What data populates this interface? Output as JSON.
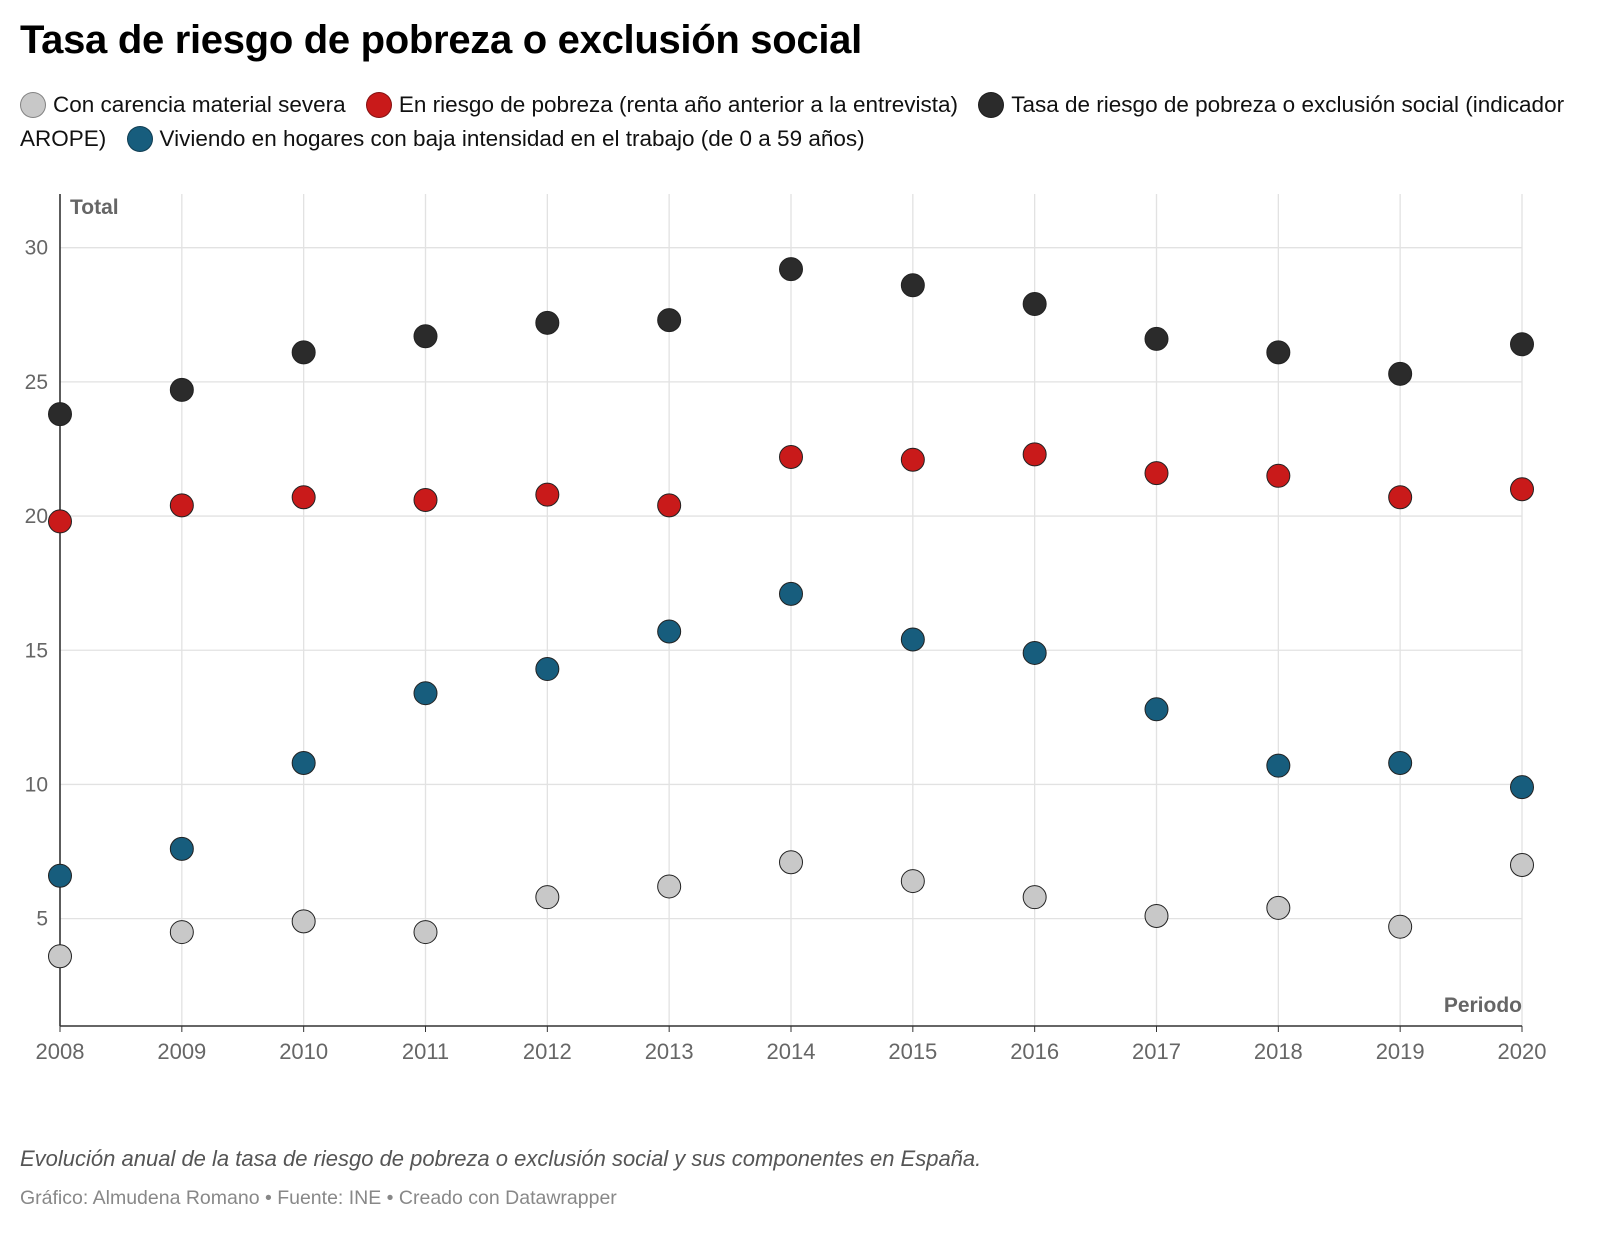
{
  "header": {
    "title": "Tasa de riesgo de pobreza o exclusión social"
  },
  "legend": [
    {
      "label": "Con carencia material severa",
      "color": "#c8c8c8"
    },
    {
      "label": "En riesgo de pobreza (renta año anterior a la entrevista)",
      "color": "#c91a1a"
    },
    {
      "label": "Tasa de riesgo de pobreza o exclusión social (indicador AROPE)",
      "color": "#2b2b2b"
    },
    {
      "label": "Viviendo en hogares con baja intensidad en el trabajo (de 0 a 59 años)",
      "color": "#175d7d"
    }
  ],
  "chart_data": {
    "type": "scatter",
    "title": "Tasa de riesgo de pobreza o exclusión social",
    "xlabel": "Periodo",
    "ylabel": "Total",
    "x": [
      "2008",
      "2009",
      "2010",
      "2011",
      "2012",
      "2013",
      "2014",
      "2015",
      "2016",
      "2017",
      "2018",
      "2019",
      "2020"
    ],
    "ylim": [
      1,
      32
    ],
    "yticks": [
      5,
      10,
      15,
      20,
      25,
      30
    ],
    "grid": true,
    "legend_position": "top",
    "series": [
      {
        "name": "Con carencia material severa",
        "color": "#c8c8c8",
        "values": [
          3.6,
          4.5,
          4.9,
          4.5,
          5.8,
          6.2,
          7.1,
          6.4,
          5.8,
          5.1,
          5.4,
          4.7,
          7.0
        ]
      },
      {
        "name": "Viviendo en hogares con baja intensidad en el trabajo (de 0 a 59 años)",
        "color": "#175d7d",
        "values": [
          6.6,
          7.6,
          10.8,
          13.4,
          14.3,
          15.7,
          17.1,
          15.4,
          14.9,
          12.8,
          10.7,
          10.8,
          9.9
        ]
      },
      {
        "name": "En riesgo de pobreza (renta año anterior a la entrevista)",
        "color": "#c91a1a",
        "values": [
          19.8,
          20.4,
          20.7,
          20.6,
          20.8,
          20.4,
          22.2,
          22.1,
          22.3,
          21.6,
          21.5,
          20.7,
          21.0
        ]
      },
      {
        "name": "Tasa de riesgo de pobreza o exclusión social (indicador AROPE)",
        "color": "#2b2b2b",
        "values": [
          23.8,
          24.7,
          26.1,
          26.7,
          27.2,
          27.3,
          29.2,
          28.6,
          27.9,
          26.6,
          26.1,
          25.3,
          26.4
        ]
      }
    ]
  },
  "notes": {
    "description": "Evolución anual de la tasa de riesgo de pobreza o exclusión social y sus componentes en España.",
    "footer": "Gráfico: Almudena Romano • Fuente: INE • Creado con Datawrapper"
  }
}
